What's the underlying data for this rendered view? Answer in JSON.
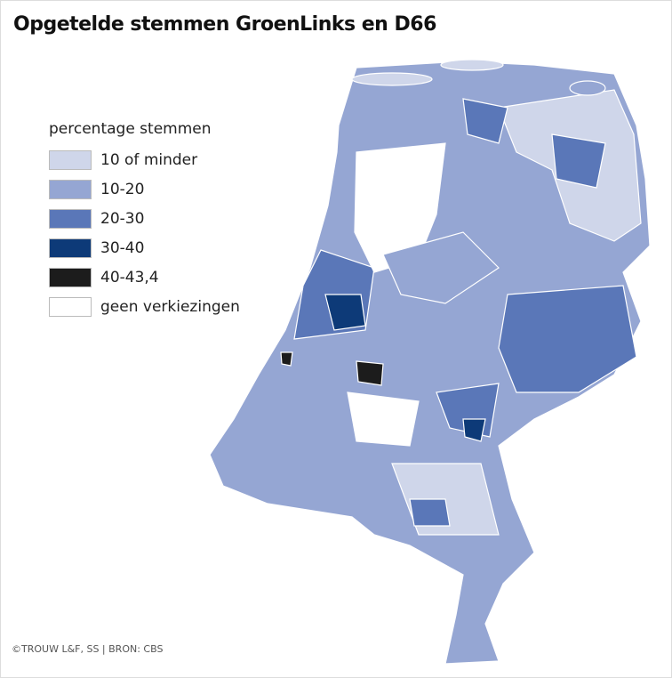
{
  "title": "Opgetelde stemmen GroenLinks en D66",
  "legend": {
    "title": "percentage stemmen",
    "items": [
      {
        "label": "10 of minder",
        "color": "#cfd6ea"
      },
      {
        "label": "10-20",
        "color": "#95a6d3"
      },
      {
        "label": "20-30",
        "color": "#5a77b8"
      },
      {
        "label": "30-40",
        "color": "#0d3a78"
      },
      {
        "label": "40-43,4",
        "color": "#1c1c1c"
      },
      {
        "label": "geen verkiezingen",
        "color": "#ffffff"
      }
    ]
  },
  "credit": "©TROUW L&F, SS | BRON: CBS"
}
